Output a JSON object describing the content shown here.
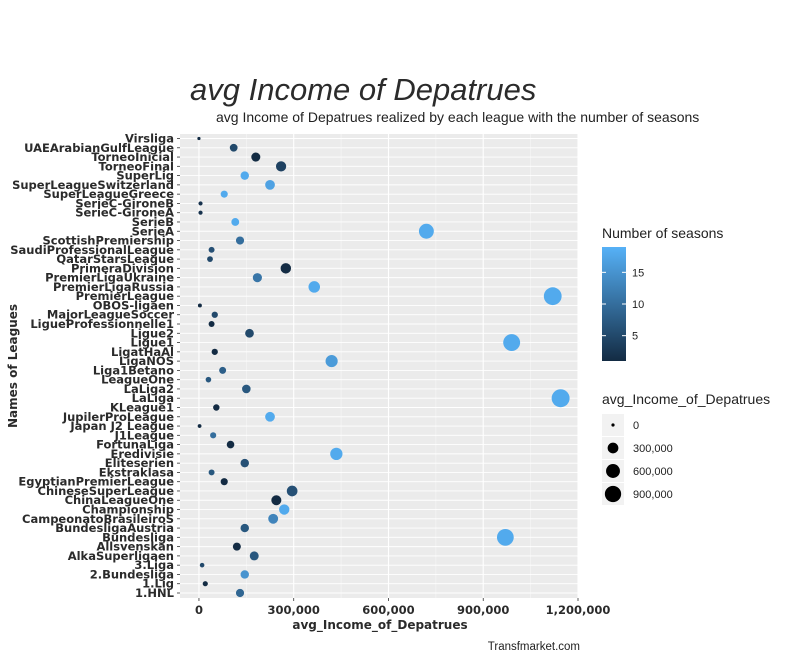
{
  "chart_data": {
    "type": "scatter",
    "title": "avg Income of Depatrues",
    "subtitle": "avg Income of Depatrues realized by each league with the number of seasons",
    "xlabel": "avg_Income_of_Depatrues",
    "ylabel": "Names of Leagues",
    "caption": "Transfmarket.com",
    "xlim": [
      -60000,
      1200000
    ],
    "x_ticks": [
      0,
      300000,
      600000,
      900000,
      1200000
    ],
    "x_tick_labels": [
      "0",
      "300,000",
      "600,000",
      "900,000",
      "1,200,000"
    ],
    "grid": true,
    "color_legend": {
      "title": "Number of seasons",
      "ticks": [
        5,
        10,
        15
      ],
      "tick_labels": [
        "5",
        "10",
        "15"
      ],
      "range": [
        1,
        19
      ],
      "low_color": "#132B43",
      "high_color": "#56B1F7"
    },
    "size_legend": {
      "title": "avg_Income_of_Depatrues",
      "values": [
        0,
        300000,
        600000,
        900000
      ],
      "labels": [
        "0",
        "300,000",
        "600,000",
        "900,000"
      ]
    },
    "points": [
      {
        "league": "Virsliga",
        "x": 0,
        "seasons": 1
      },
      {
        "league": "UAEArabianGulfLeague",
        "x": 110000,
        "seasons": 5
      },
      {
        "league": "TorneoInicial",
        "x": 180000,
        "seasons": 1
      },
      {
        "league": "TorneoFinal",
        "x": 260000,
        "seasons": 4
      },
      {
        "league": "SuperLig",
        "x": 145000,
        "seasons": 18
      },
      {
        "league": "SuperLeagueSwitzerland",
        "x": 225000,
        "seasons": 17
      },
      {
        "league": "SuperLeagueGreece",
        "x": 80000,
        "seasons": 18
      },
      {
        "league": "SerieC-GironeB",
        "x": 5000,
        "seasons": 2
      },
      {
        "league": "SerieC-GironeA",
        "x": 5000,
        "seasons": 2
      },
      {
        "league": "SerieB",
        "x": 115000,
        "seasons": 18
      },
      {
        "league": "SerieA",
        "x": 720000,
        "seasons": 18
      },
      {
        "league": "ScottishPremiership",
        "x": 130000,
        "seasons": 10
      },
      {
        "league": "SaudiProfessionalLeague",
        "x": 40000,
        "seasons": 6
      },
      {
        "league": "QatarStarsLeague",
        "x": 35000,
        "seasons": 5
      },
      {
        "league": "PrimeraDivision",
        "x": 275000,
        "seasons": 1
      },
      {
        "league": "PremierLigaUkraine",
        "x": 185000,
        "seasons": 11
      },
      {
        "league": "PremierLigaRussia",
        "x": 365000,
        "seasons": 18
      },
      {
        "league": "PremierLeague",
        "x": 1120000,
        "seasons": 18
      },
      {
        "league": "OBOS-ligaen",
        "x": 3000,
        "seasons": 1
      },
      {
        "league": "MajorLeagueSoccer",
        "x": 50000,
        "seasons": 5
      },
      {
        "league": "LigueProfessionnelle1",
        "x": 40000,
        "seasons": 1
      },
      {
        "league": "Ligue2",
        "x": 160000,
        "seasons": 5
      },
      {
        "league": "Ligue1",
        "x": 990000,
        "seasons": 18
      },
      {
        "league": "LigatHaAl",
        "x": 50000,
        "seasons": 1
      },
      {
        "league": "LigaNOS",
        "x": 420000,
        "seasons": 16
      },
      {
        "league": "Liga1Betano",
        "x": 75000,
        "seasons": 8
      },
      {
        "league": "LeagueOne",
        "x": 30000,
        "seasons": 7
      },
      {
        "league": "LaLiga2",
        "x": 150000,
        "seasons": 7
      },
      {
        "league": "LaLiga",
        "x": 1145000,
        "seasons": 18
      },
      {
        "league": "KLeague1",
        "x": 55000,
        "seasons": 1
      },
      {
        "league": "JupilerProLeague",
        "x": 225000,
        "seasons": 18
      },
      {
        "league": "Japan J2 League",
        "x": 2000,
        "seasons": 1
      },
      {
        "league": "J1League",
        "x": 45000,
        "seasons": 10
      },
      {
        "league": "FortunaLiga",
        "x": 100000,
        "seasons": 1
      },
      {
        "league": "Eredivisie",
        "x": 435000,
        "seasons": 18
      },
      {
        "league": "Eliteserien",
        "x": 145000,
        "seasons": 6
      },
      {
        "league": "Ekstraklasa",
        "x": 40000,
        "seasons": 7
      },
      {
        "league": "EgyptianPremierLeague",
        "x": 80000,
        "seasons": 1
      },
      {
        "league": "ChineseSuperLeague",
        "x": 295000,
        "seasons": 6
      },
      {
        "league": "ChinaLeagueOne",
        "x": 245000,
        "seasons": 1
      },
      {
        "league": "Championship",
        "x": 270000,
        "seasons": 18
      },
      {
        "league": "CampeonatoBrasileiroS",
        "x": 235000,
        "seasons": 13
      },
      {
        "league": "BundesligaAustria",
        "x": 145000,
        "seasons": 7
      },
      {
        "league": "Bundesliga",
        "x": 970000,
        "seasons": 18
      },
      {
        "league": "Allsvenskan",
        "x": 120000,
        "seasons": 1
      },
      {
        "league": "AlkaSuperligaen",
        "x": 175000,
        "seasons": 7
      },
      {
        "league": "3.Liga",
        "x": 10000,
        "seasons": 5
      },
      {
        "league": "2.Bundesliga",
        "x": 145000,
        "seasons": 15
      },
      {
        "league": "1.Lig",
        "x": 20000,
        "seasons": 1
      },
      {
        "league": "1.HNL",
        "x": 130000,
        "seasons": 9
      }
    ]
  }
}
